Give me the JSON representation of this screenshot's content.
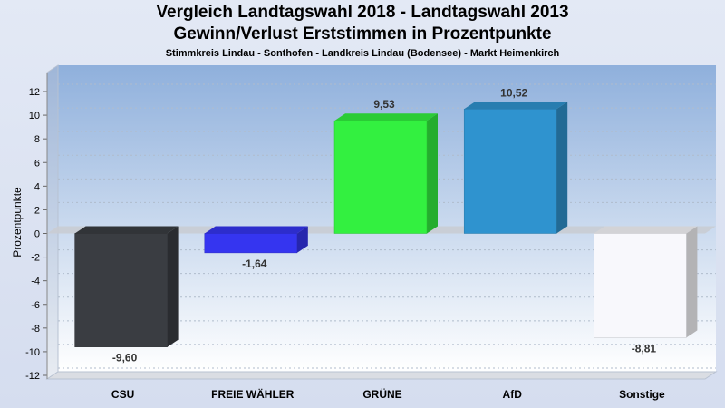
{
  "chart_data": {
    "type": "bar",
    "title": "Vergleich Landtagswahl 2018 - Landtagswahl 2013",
    "subtitle": "Gewinn/Verlust Erststimmen in Prozentpunkte",
    "caption": "Stimmkreis Lindau - Sonthofen - Landkreis Lindau (Bodensee) - Markt Heimenkirch",
    "xlabel": "",
    "ylabel": "Prozentpunkte",
    "ylim": [
      -12,
      12
    ],
    "yticks": [
      12,
      10,
      8,
      6,
      4,
      2,
      0,
      -2,
      -4,
      -6,
      -8,
      -10,
      -12
    ],
    "categories": [
      "CSU",
      "FREIE WÄHLER",
      "GRÜNE",
      "AfD",
      "Sonstige"
    ],
    "values": [
      -9.6,
      -1.64,
      9.53,
      10.52,
      -8.81
    ],
    "value_labels": [
      "-9,60",
      "-1,64",
      "9,53",
      "10,52",
      "-8,81"
    ],
    "colors": [
      "#3a3d42",
      "#3535f0",
      "#33f040",
      "#2f93cf",
      "#f8f8fc"
    ],
    "grid": true,
    "legend": "none"
  }
}
